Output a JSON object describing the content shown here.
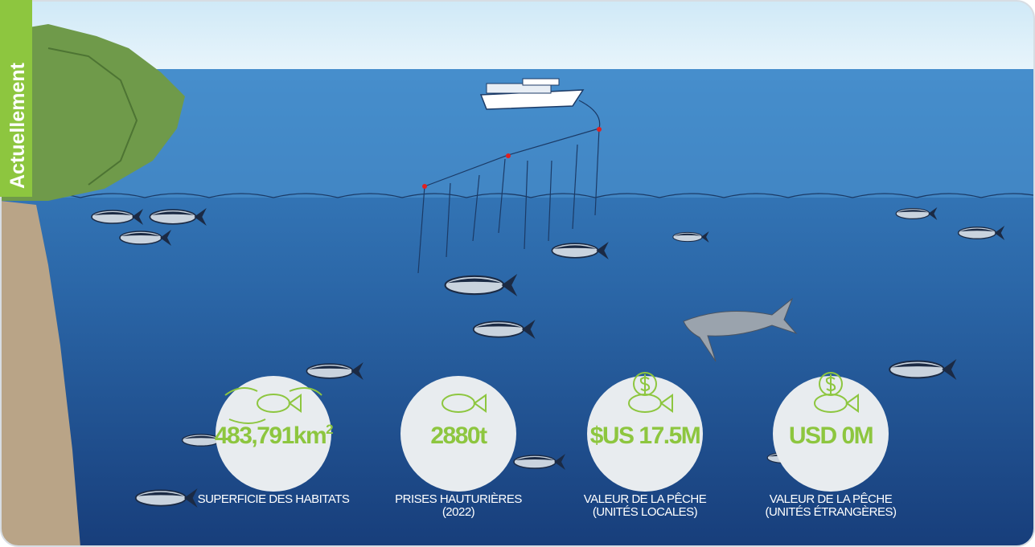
{
  "header": {
    "label": "Actuellement"
  },
  "stats": [
    {
      "value": "483,791km",
      "superscript": "2",
      "caption": [
        "SUPERFICIE DES HABITATS"
      ]
    },
    {
      "value": "2880t",
      "caption": [
        "PRISES HAUTURIÈRES",
        "(2022)"
      ]
    },
    {
      "value": "$US 17.5M",
      "caption": [
        "VALEUR DE LA PÊCHE",
        "(UNITÉS LOCALES)"
      ]
    },
    {
      "value": "USD 0M",
      "caption": [
        "VALEUR DE LA PÊCHE",
        "(UNITÉS ÉTRANGÈRES)"
      ]
    }
  ]
}
